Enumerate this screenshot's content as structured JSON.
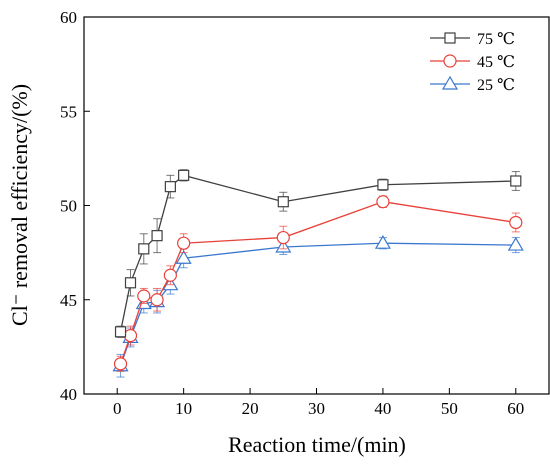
{
  "chart_data": {
    "type": "line",
    "xlabel": "Reaction time/(min)",
    "ylabel": "Cl⁻ removal efficiency/(%)",
    "xlim": [
      -5,
      65
    ],
    "ylim": [
      40,
      60
    ],
    "xticks": [
      0,
      10,
      20,
      30,
      40,
      50,
      60
    ],
    "yticks": [
      40,
      45,
      50,
      55,
      60
    ],
    "grid": false,
    "legend_position": "top-right",
    "series": [
      {
        "name": "75 ℃",
        "marker": "square",
        "color": "#404040",
        "x": [
          0.5,
          2,
          4,
          6,
          8,
          10,
          25,
          40,
          60
        ],
        "y": [
          43.3,
          45.9,
          47.7,
          48.4,
          51.0,
          51.6,
          50.2,
          51.1,
          51.3
        ],
        "err": [
          0.3,
          0.7,
          0.8,
          0.9,
          0.6,
          0.3,
          0.5,
          0.3,
          0.5
        ]
      },
      {
        "name": "45 ℃",
        "marker": "circle",
        "color": "#e8413a",
        "x": [
          0.5,
          2,
          4,
          6,
          8,
          10,
          25,
          40,
          60
        ],
        "y": [
          41.6,
          43.1,
          45.2,
          45.0,
          46.3,
          48.0,
          48.3,
          50.2,
          49.1
        ],
        "err": [
          0.4,
          0.5,
          0.4,
          0.6,
          0.5,
          0.5,
          0.6,
          0.3,
          0.5
        ]
      },
      {
        "name": "25 ℃",
        "marker": "triangle",
        "color": "#3a78d0",
        "x": [
          0.5,
          2,
          4,
          6,
          8,
          10,
          25,
          40,
          60
        ],
        "y": [
          41.5,
          43.0,
          44.8,
          44.9,
          45.8,
          47.2,
          47.8,
          48.0,
          47.9
        ],
        "err": [
          0.6,
          0.5,
          0.5,
          0.6,
          0.5,
          0.5,
          0.4,
          0.3,
          0.4
        ]
      }
    ]
  }
}
